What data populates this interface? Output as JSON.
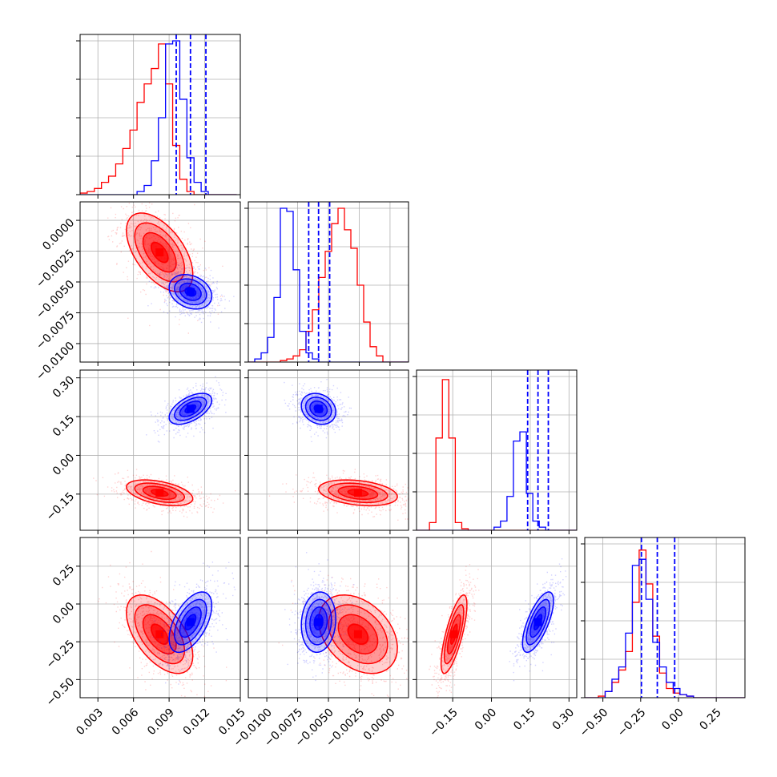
{
  "chart_data": {
    "type": "corner",
    "colors": {
      "red": "#ff0000",
      "blue": "#0000ff",
      "grid": "#b0b0b0"
    },
    "parameters": 4,
    "ranges": [
      [
        0.0015,
        0.015
      ],
      [
        -0.0115,
        0.0015
      ],
      [
        -0.29,
        0.33
      ],
      [
        -0.62,
        0.44
      ]
    ],
    "ticks": [
      [
        "0.003",
        "0.006",
        "0.009",
        "0.012",
        "0.015"
      ],
      [
        "−0.0100",
        "−0.0075",
        "−0.0050",
        "−0.0025",
        "0.0000"
      ],
      [
        "−0.15",
        "0.00",
        "0.15",
        "0.30"
      ],
      [
        "−0.50",
        "−0.25",
        "0.00",
        "0.25"
      ]
    ],
    "tick_values": [
      [
        0.003,
        0.006,
        0.009,
        0.012,
        0.015
      ],
      [
        -0.01,
        -0.0075,
        -0.005,
        -0.0025,
        0.0
      ],
      [
        -0.15,
        0.0,
        0.15,
        0.3
      ],
      [
        -0.5,
        -0.25,
        0.0,
        0.25
      ]
    ],
    "series": [
      {
        "color": "red",
        "mean": [
          0.0082,
          -0.0026,
          -0.145,
          -0.2
        ],
        "sd": [
          0.0014,
          0.0016,
          0.025,
          0.13
        ],
        "quantiles": null,
        "histograms": [
          {
            "bins_from": 0.0015,
            "bin_width": 0.0006,
            "counts": [
              0.01,
              0.02,
              0.04,
              0.08,
              0.12,
              0.2,
              0.3,
              0.42,
              0.6,
              0.72,
              0.82,
              0.98,
              0.72,
              0.32,
              0.1,
              0.02,
              0,
              0,
              0,
              0,
              0,
              0
            ]
          },
          {
            "bins_from": -0.0115,
            "bin_width": 0.00052,
            "counts": [
              0,
              0,
              0,
              0,
              0,
              0.01,
              0.02,
              0.04,
              0.08,
              0.2,
              0.34,
              0.55,
              0.72,
              0.9,
              1.0,
              0.86,
              0.74,
              0.5,
              0.26,
              0.1,
              0.04,
              0,
              0,
              0,
              0
            ]
          },
          {
            "bins_from": -0.29,
            "bin_width": 0.025,
            "counts": [
              0,
              0,
              0.05,
              0.6,
              0.98,
              0.6,
              0.05,
              0.01,
              0,
              0,
              0,
              0,
              0,
              0,
              0,
              0,
              0,
              0,
              0,
              0,
              0,
              0,
              0,
              0,
              0
            ]
          },
          {
            "bins_from": -0.62,
            "bin_width": 0.045,
            "counts": [
              0,
              0,
              0.01,
              0.04,
              0.1,
              0.18,
              0.3,
              0.62,
              0.96,
              0.74,
              0.4,
              0.16,
              0.06,
              0.03,
              0.02,
              0.01,
              0,
              0,
              0,
              0,
              0,
              0,
              0,
              0
            ]
          }
        ]
      },
      {
        "color": "blue",
        "mean": [
          0.0108,
          -0.0058,
          0.18,
          -0.12
        ],
        "sd": [
          0.0009,
          0.0007,
          0.03,
          0.1
        ],
        "quantiles": [
          [
            0.0096,
            0.0108,
            0.0121
          ],
          [
            -0.0066,
            -0.0058,
            -0.0049
          ],
          [
            0.14,
            0.18,
            0.22
          ],
          [
            -0.245,
            -0.14,
            -0.025
          ]
        ],
        "histograms": [
          {
            "bins_from": 0.0015,
            "bin_width": 0.0006,
            "counts": [
              0,
              0,
              0,
              0,
              0,
              0,
              0,
              0,
              0.02,
              0.06,
              0.22,
              0.5,
              0.98,
              1.0,
              0.62,
              0.24,
              0.08,
              0.02,
              0,
              0,
              0,
              0
            ]
          },
          {
            "bins_from": -0.0115,
            "bin_width": 0.00052,
            "counts": [
              0,
              0.02,
              0.06,
              0.16,
              0.42,
              1.0,
              0.98,
              0.6,
              0.2,
              0.06,
              0.02,
              0,
              0,
              0,
              0,
              0,
              0,
              0,
              0,
              0,
              0,
              0,
              0,
              0,
              0
            ]
          },
          {
            "bins_from": -0.29,
            "bin_width": 0.025,
            "counts": [
              0,
              0,
              0,
              0,
              0,
              0,
              0,
              0,
              0,
              0,
              0,
              0,
              0.02,
              0.06,
              0.22,
              0.58,
              0.64,
              0.24,
              0.06,
              0.02,
              0,
              0,
              0,
              0,
              0
            ]
          },
          {
            "bins_from": -0.62,
            "bin_width": 0.045,
            "counts": [
              0,
              0,
              0,
              0.04,
              0.12,
              0.2,
              0.42,
              0.86,
              0.9,
              0.64,
              0.36,
              0.2,
              0.1,
              0.06,
              0.02,
              0.01,
              0,
              0,
              0,
              0,
              0,
              0,
              0,
              0
            ]
          }
        ]
      }
    ],
    "correlations": {
      "red": {
        "0-1": -0.55,
        "0-2": -0.45,
        "1-2": -0.3,
        "0-3": -0.55,
        "1-3": -0.35,
        "2-3": 0.75
      },
      "blue": {
        "0-1": -0.25,
        "0-2": 0.55,
        "1-2": -0.2,
        "0-3": 0.55,
        "1-3": 0.1,
        "2-3": 0.7
      }
    },
    "grid": true
  }
}
